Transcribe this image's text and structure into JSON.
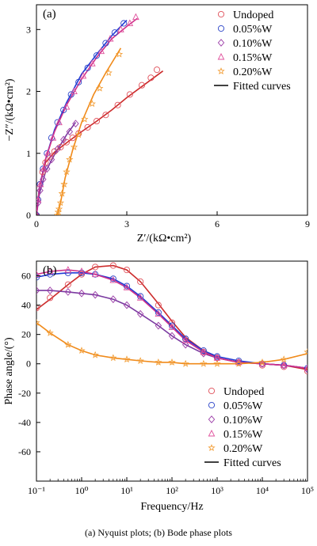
{
  "caption": "(a) Nyquist plots; (b) Bode phase plots",
  "legend_items": [
    "Undoped",
    "0.05%W",
    "0.10%W",
    "0.15%W",
    "0.20%W",
    "Fitted curves"
  ],
  "colors": {
    "Undoped": "#e0505a",
    "0.05%W": "#2a43c8",
    "0.10%W": "#9a3aa6",
    "0.15%W": "#e0509c",
    "0.20%W": "#f29a2e",
    "fit_undoped": "#cc2b2b",
    "fit_005": "#1f3bd6",
    "fit_010": "#7a3aa0",
    "fit_015": "#d0308a",
    "fit_020": "#f08a1a"
  },
  "chart_data": [
    {
      "type": "scatter",
      "panel": "(a)",
      "title": "Nyquist plots",
      "xlabel": "Z′/(kΩ•cm²)",
      "ylabel": "−Z″/(kΩ•cm²)",
      "xlim": [
        0,
        9
      ],
      "ylim": [
        0,
        3.4
      ],
      "xticks": [
        0,
        3,
        6,
        9
      ],
      "yticks": [
        0,
        1,
        2,
        3
      ],
      "legend_position": "top-right",
      "series": [
        {
          "name": "Undoped",
          "marker": "circle",
          "x": [
            0.0,
            0.05,
            0.12,
            0.2,
            0.3,
            0.45,
            0.6,
            0.8,
            1.0,
            1.2,
            1.4,
            1.7,
            2.0,
            2.3,
            2.7,
            3.1,
            3.5,
            3.8,
            4.0
          ],
          "y": [
            0.0,
            0.25,
            0.5,
            0.7,
            0.85,
            0.95,
            1.03,
            1.1,
            1.18,
            1.25,
            1.32,
            1.42,
            1.52,
            1.62,
            1.78,
            1.95,
            2.1,
            2.22,
            2.35
          ]
        },
        {
          "name": "0.05%W",
          "marker": "circle",
          "x": [
            0.0,
            0.05,
            0.12,
            0.22,
            0.35,
            0.5,
            0.7,
            0.9,
            1.15,
            1.4,
            1.7,
            2.0,
            2.3,
            2.6,
            2.9
          ],
          "y": [
            0.0,
            0.25,
            0.5,
            0.75,
            1.0,
            1.25,
            1.5,
            1.7,
            1.95,
            2.15,
            2.38,
            2.58,
            2.78,
            2.95,
            3.1
          ]
        },
        {
          "name": "0.10%W",
          "marker": "diamond",
          "x": [
            0.0,
            0.05,
            0.12,
            0.22,
            0.35,
            0.5,
            0.7,
            0.9,
            1.1,
            1.3
          ],
          "y": [
            0.0,
            0.2,
            0.4,
            0.58,
            0.75,
            0.9,
            1.07,
            1.22,
            1.35,
            1.48
          ]
        },
        {
          "name": "0.15%W",
          "marker": "triangle",
          "x": [
            0.0,
            0.05,
            0.13,
            0.24,
            0.38,
            0.55,
            0.75,
            1.0,
            1.25,
            1.55,
            1.85,
            2.15,
            2.45,
            2.8,
            3.1,
            3.3
          ],
          "y": [
            0.0,
            0.25,
            0.5,
            0.75,
            1.0,
            1.25,
            1.5,
            1.75,
            2.0,
            2.25,
            2.45,
            2.65,
            2.85,
            3.0,
            3.1,
            3.2
          ]
        },
        {
          "name": "0.20%W",
          "marker": "star",
          "x": [
            0.7,
            0.72,
            0.75,
            0.8,
            0.85,
            0.92,
            1.0,
            1.1,
            1.25,
            1.4,
            1.6,
            1.85,
            2.1,
            2.4,
            2.75
          ],
          "y": [
            0.0,
            0.05,
            0.1,
            0.2,
            0.35,
            0.5,
            0.7,
            0.9,
            1.1,
            1.3,
            1.55,
            1.8,
            2.05,
            2.3,
            2.6
          ]
        }
      ],
      "fits": [
        {
          "name": "Undoped",
          "x": [
            0.0,
            0.1,
            0.3,
            0.6,
            1.0,
            1.5,
            2.0,
            2.5,
            3.0,
            3.5,
            4.2
          ],
          "y": [
            0.0,
            0.45,
            0.85,
            1.02,
            1.17,
            1.35,
            1.52,
            1.7,
            1.9,
            2.08,
            2.33
          ]
        },
        {
          "name": "0.05%W",
          "x": [
            0.0,
            0.1,
            0.3,
            0.6,
            1.0,
            1.5,
            2.0,
            2.5,
            3.0
          ],
          "y": [
            0.0,
            0.45,
            0.9,
            1.38,
            1.82,
            2.28,
            2.6,
            2.9,
            3.15
          ]
        },
        {
          "name": "0.10%W",
          "x": [
            0.0,
            0.1,
            0.3,
            0.6,
            1.0,
            1.3
          ],
          "y": [
            0.0,
            0.35,
            0.7,
            0.98,
            1.3,
            1.5
          ]
        },
        {
          "name": "0.15%W",
          "x": [
            0.0,
            0.1,
            0.3,
            0.6,
            1.0,
            1.5,
            2.0,
            2.5,
            3.0,
            3.35
          ],
          "y": [
            0.0,
            0.45,
            0.9,
            1.35,
            1.78,
            2.2,
            2.55,
            2.85,
            3.05,
            3.18
          ]
        },
        {
          "name": "0.20%W",
          "x": [
            0.7,
            0.8,
            0.95,
            1.2,
            1.5,
            1.9,
            2.3,
            2.8
          ],
          "y": [
            0.0,
            0.2,
            0.6,
            1.05,
            1.5,
            1.95,
            2.3,
            2.7
          ]
        }
      ]
    },
    {
      "type": "scatter",
      "panel": "(b)",
      "title": "Bode phase plots",
      "xlabel": "Frequency/Hz",
      "ylabel": "Phase angle/(°)",
      "xscale": "log",
      "xlim": [
        0.1,
        100000
      ],
      "ylim": [
        -80,
        70
      ],
      "xtick_labels": [
        "10⁻¹",
        "10⁰",
        "10¹",
        "10²",
        "10³",
        "10⁴",
        "10⁵"
      ],
      "yticks": [
        60,
        40,
        20,
        0,
        -20,
        -40,
        -60
      ],
      "legend_position": "bottom-right",
      "series": [
        {
          "name": "Undoped",
          "marker": "circle",
          "x": [
            0.1,
            0.2,
            0.5,
            1,
            2,
            5,
            10,
            20,
            50,
            100,
            200,
            500,
            1000,
            3000,
            10000,
            30000,
            100000
          ],
          "y": [
            38,
            45,
            54,
            61,
            66,
            67,
            64,
            56,
            40,
            28,
            17,
            8,
            4,
            1,
            -1,
            -2,
            -5
          ]
        },
        {
          "name": "0.05%W",
          "marker": "circle",
          "x": [
            0.1,
            0.2,
            0.5,
            1,
            2,
            5,
            10,
            20,
            50,
            100,
            200,
            500,
            1000,
            3000,
            10000,
            30000,
            100000
          ],
          "y": [
            59,
            61,
            62,
            62,
            61,
            58,
            53,
            46,
            35,
            26,
            17,
            9,
            5,
            2,
            0,
            -1,
            -3
          ]
        },
        {
          "name": "0.10%W",
          "marker": "diamond",
          "x": [
            0.1,
            0.2,
            0.5,
            1,
            2,
            5,
            10,
            20,
            50,
            100,
            200,
            500,
            1000,
            3000,
            10000,
            30000,
            100000
          ],
          "y": [
            50,
            50,
            49,
            48,
            47,
            44,
            40,
            34,
            26,
            19,
            13,
            7,
            4,
            1,
            0,
            -1,
            -4
          ]
        },
        {
          "name": "0.15%W",
          "marker": "triangle",
          "x": [
            0.1,
            0.2,
            0.5,
            1,
            2,
            5,
            10,
            20,
            50,
            100,
            200,
            500,
            1000,
            3000,
            10000,
            30000,
            100000
          ],
          "y": [
            61,
            63,
            64,
            63,
            61,
            57,
            52,
            45,
            34,
            25,
            16,
            8,
            4,
            1,
            0,
            -1,
            -3
          ]
        },
        {
          "name": "0.20%W",
          "marker": "star",
          "x": [
            0.1,
            0.2,
            0.5,
            1,
            2,
            5,
            10,
            20,
            50,
            100,
            200,
            500,
            1000,
            3000,
            10000,
            30000,
            100000
          ],
          "y": [
            28,
            21,
            13,
            9,
            6,
            4,
            3,
            2,
            1,
            1,
            0,
            0,
            0,
            0,
            1,
            3,
            8
          ]
        }
      ],
      "fits": [
        {
          "name": "Undoped",
          "x": [
            0.1,
            0.2,
            0.5,
            1,
            2,
            5,
            10,
            20,
            50,
            100,
            200,
            500,
            1000,
            3000,
            10000,
            30000,
            100000
          ],
          "y": [
            37,
            44,
            54,
            61,
            66,
            67,
            64,
            56,
            41,
            29,
            18,
            9,
            4,
            1,
            0,
            -1,
            -4
          ]
        },
        {
          "name": "0.05%W",
          "x": [
            0.1,
            0.2,
            0.5,
            1,
            2,
            5,
            10,
            20,
            50,
            100,
            200,
            500,
            1000,
            3000,
            10000,
            30000,
            100000
          ],
          "y": [
            59,
            61,
            62,
            62,
            61,
            58,
            53,
            46,
            35,
            26,
            17,
            9,
            5,
            2,
            0,
            -1,
            -3
          ]
        },
        {
          "name": "0.10%W",
          "x": [
            0.1,
            0.2,
            0.5,
            1,
            2,
            5,
            10,
            20,
            50,
            100,
            200,
            500,
            1000,
            3000,
            10000,
            30000,
            100000
          ],
          "y": [
            50,
            50,
            49,
            48,
            47,
            44,
            40,
            34,
            26,
            19,
            13,
            7,
            4,
            1,
            0,
            -1,
            -3
          ]
        },
        {
          "name": "0.15%W",
          "x": [
            0.1,
            0.2,
            0.5,
            1,
            2,
            5,
            10,
            20,
            50,
            100,
            200,
            500,
            1000,
            3000,
            10000,
            30000,
            100000
          ],
          "y": [
            61,
            63,
            64,
            63,
            61,
            57,
            52,
            45,
            34,
            25,
            16,
            8,
            4,
            1,
            0,
            -1,
            -3
          ]
        },
        {
          "name": "0.20%W",
          "x": [
            0.1,
            0.2,
            0.5,
            1,
            2,
            5,
            10,
            20,
            50,
            100,
            200,
            500,
            1000,
            3000,
            10000,
            30000,
            100000
          ],
          "y": [
            28,
            21,
            13,
            9,
            6,
            4,
            3,
            2,
            1,
            1,
            0,
            0,
            0,
            0,
            1,
            3,
            7
          ]
        }
      ]
    }
  ]
}
